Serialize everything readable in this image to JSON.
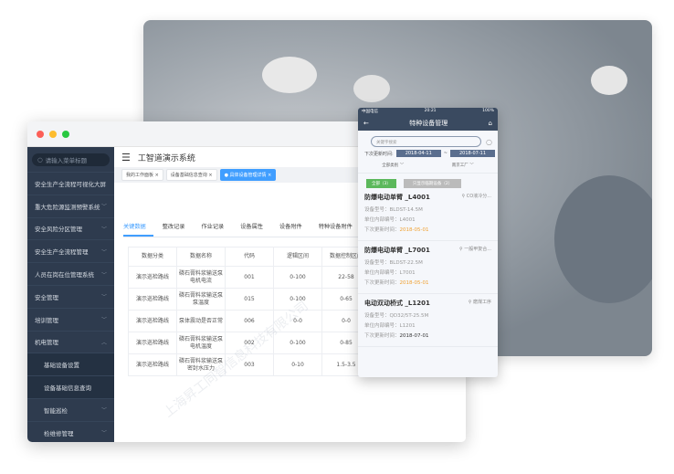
{
  "window": {
    "app_title": "工智道演示系统",
    "search_placeholder": "请输入菜单标题",
    "menu": [
      {
        "label": "安全生产全流程可视化大屏",
        "chev": ""
      },
      {
        "label": "重大危险源监测预警系统",
        "chev": "﹀"
      },
      {
        "label": "安全风险分区管理",
        "chev": "﹀"
      },
      {
        "label": "安全生产全流程管理",
        "chev": "﹀"
      },
      {
        "label": "人员在岗在位管理系统",
        "chev": "﹀"
      },
      {
        "label": "安全管理",
        "chev": "﹀"
      },
      {
        "label": "培训管理",
        "chev": "﹀"
      },
      {
        "label": "机电管理",
        "chev": "︿"
      }
    ],
    "submenu": [
      "基础设备设置",
      "设备基础信息查询"
    ],
    "submenu2": [
      {
        "label": "智能巡检",
        "chev": "﹀"
      },
      {
        "label": "检维修管理",
        "chev": "﹀"
      }
    ],
    "tags": [
      "我的工作面板",
      "设备基础信息查询",
      "具体设备管理详情"
    ],
    "tabs": [
      "关键数据",
      "整改记录",
      "作业记录",
      "设备属性",
      "设备附件",
      "特种设备附件"
    ],
    "table": {
      "headers": [
        "数据分类",
        "数据名称",
        "代码",
        "逻辑区间",
        "数据控制区间"
      ],
      "rows": [
        [
          "演示巡检路线",
          "磷石膏料浆输送泵电机电流",
          "001",
          "0-100",
          "22-58"
        ],
        [
          "演示巡检路线",
          "磷石膏料浆输送泵泵温度",
          "015",
          "0-100",
          "0-65"
        ],
        [
          "演示巡检路线",
          "泵体震动是否正常",
          "006",
          "0-0",
          "0-0"
        ],
        [
          "演示巡检路线",
          "磷石膏料浆输送泵电机温度",
          "002",
          "0-100",
          "0-85"
        ],
        [
          "演示巡检路线",
          "磷石膏料浆输送泵密封水压力",
          "003",
          "0-10",
          "1.5-3.5"
        ]
      ]
    }
  },
  "phone": {
    "carrier": "中国电信",
    "time": "20:21",
    "battery": "100%",
    "title": "特种设备管理",
    "search_placeholder": "关键字搜索",
    "date_label": "下次更新时间:",
    "date_from": "2018-04-11",
    "date_sep": "~",
    "date_to": "2018-07-11",
    "filter1": "全部类别",
    "filter2": "南京工厂",
    "btn_all": "全部（3）",
    "btn_expiring": "只显示临期设备（2）",
    "items": [
      {
        "name": "防爆电动单臂 _L4001",
        "loc": "CO液冷分...",
        "model": "设备型号：BLDST-14.5M",
        "code": "单位内部编号：L4001",
        "next_label": "下次更新时间：",
        "next": "2018-05-01",
        "warn": true
      },
      {
        "name": "防爆电动单臂 _L7001",
        "loc": "一般甲复合...",
        "model": "设备型号：BLDST-22.5M",
        "code": "单位内部编号：L7001",
        "next_label": "下次更新时间：",
        "next": "2018-05-01",
        "warn": true
      },
      {
        "name": "电动双动桥式 _L1201",
        "loc": "磨煤工序",
        "model": "设备型号：QD32/5T-25.5M",
        "code": "单位内部编号：L1201",
        "next_label": "下次更新时间：",
        "next": "2018-07-01",
        "warn": false
      }
    ]
  },
  "watermark": "上海昇工同智信息科技有限公司",
  "colors": {
    "accent": "#409eff",
    "sidebar": "#2e3b4e",
    "phone_header": "#3a4a60",
    "green": "#5cb85c",
    "warn": "#f0a030"
  }
}
